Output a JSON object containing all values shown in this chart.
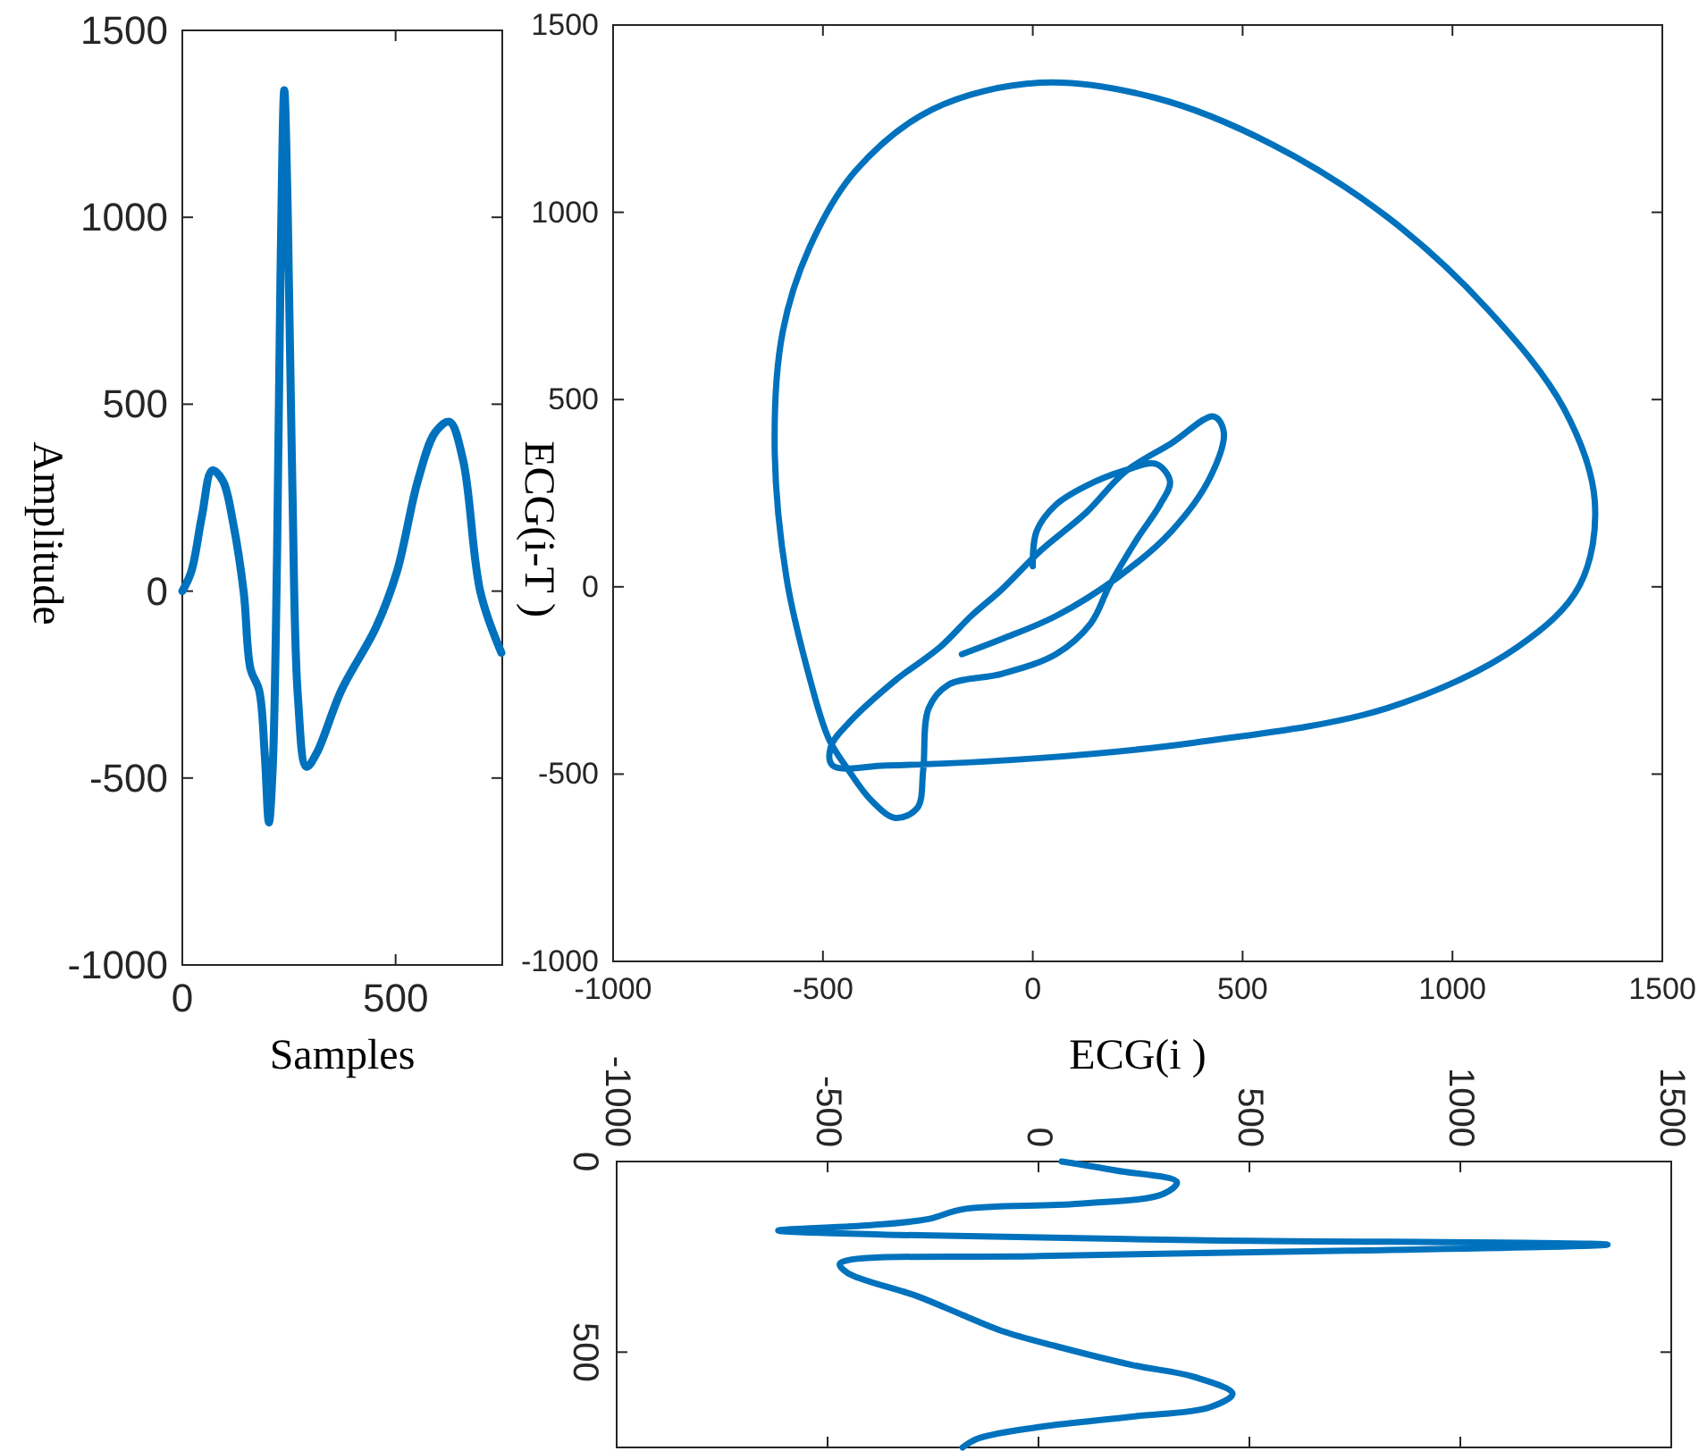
{
  "chart_data": [
    {
      "type": "line",
      "xlabel": "Samples",
      "ylabel": "Amplitude",
      "xlim": [
        0,
        750
      ],
      "xticks": [
        0,
        500
      ],
      "ylim": [
        -1000,
        1500
      ],
      "yticks": [
        -1000,
        -500,
        0,
        500,
        1000,
        1500
      ],
      "x": [
        0,
        21,
        46,
        70,
        95,
        119,
        144,
        160,
        180,
        193,
        203,
        212,
        222,
        230,
        239,
        247,
        258,
        271,
        291,
        315,
        373,
        454,
        503,
        552,
        593,
        626,
        658,
        699,
        748
      ],
      "series": [
        {
          "color": "#0072bd",
          "values": [
            0,
            52,
            201,
            323,
            295,
            183,
            -4,
            -209,
            -265,
            -433,
            -619,
            -470,
            90,
            836,
            1340,
            1022,
            276,
            -284,
            -470,
            -433,
            -265,
            -97,
            52,
            295,
            425,
            453,
            351,
            -4,
            -165
          ]
        }
      ]
    },
    {
      "type": "line",
      "xlabel": "ECG(i )",
      "ylabel": "ECG(i-T )",
      "xlim": [
        -1000,
        1500
      ],
      "xticks": [
        -1000,
        -500,
        0,
        500,
        1000,
        1500
      ],
      "ylim": [
        -1000,
        1500
      ],
      "yticks": [
        -1000,
        -500,
        0,
        500,
        1000,
        1500
      ],
      "x": [
        0,
        9,
        55,
        128,
        220,
        294,
        327,
        303,
        248,
        183,
        138,
        55,
        -73,
        -202,
        -248,
        -261,
        -275,
        -327,
        -385,
        -440,
        -486,
        -532,
        -587,
        -615,
        -596,
        -532,
        -422,
        -239,
        18,
        294,
        569,
        844,
        1083,
        1266,
        1339,
        1303,
        1156,
        844,
        385,
        18,
        -349,
        -477,
        -481,
        -440,
        -330,
        -220,
        -147,
        -73,
        18,
        128,
        220,
        330,
        431,
        455,
        422,
        330,
        202,
        55,
        -73,
        -169
      ],
      "series": [
        {
          "color": "#0072bd",
          "values": [
            55,
            148,
            219,
            270,
            311,
            328,
            281,
            219,
            127,
            4,
            -98,
            -180,
            -232,
            -262,
            -324,
            -488,
            -590,
            -617,
            -570,
            -488,
            -406,
            -242,
            25,
            373,
            680,
            906,
            1111,
            1275,
            1346,
            1305,
            1182,
            988,
            742,
            475,
            230,
            4,
            -160,
            -324,
            -416,
            -457,
            -477,
            -477,
            -426,
            -365,
            -252,
            -160,
            -78,
            -6,
            96,
            199,
            307,
            383,
            455,
            414,
            291,
            148,
            25,
            -78,
            -139,
            -180
          ]
        }
      ]
    },
    {
      "type": "line",
      "xlim": [
        -1000,
        1500
      ],
      "xticks": [
        -1000,
        -500,
        0,
        500,
        1000,
        1500
      ],
      "ylim": [
        750,
        0
      ],
      "yticks": [
        0,
        500
      ],
      "x": [
        55,
        186,
        328,
        296,
        95,
        -179,
        -261,
        -398,
        -617,
        -361,
        369,
        1349,
        734,
        4,
        -471,
        -453,
        -288,
        -179,
        -88,
        40,
        223,
        369,
        460,
        405,
        223,
        4,
        -142,
        -180
      ],
      "series": [
        {
          "color": "#0072bd",
          "values": [
            0,
            24,
            54,
            85,
            111,
            125,
            151,
            167,
            181,
            192,
            206,
            218,
            234,
            248,
            268,
            292,
            353,
            403,
            444,
            484,
            534,
            565,
            609,
            645,
            669,
            696,
            726,
            750
          ]
        }
      ]
    }
  ]
}
